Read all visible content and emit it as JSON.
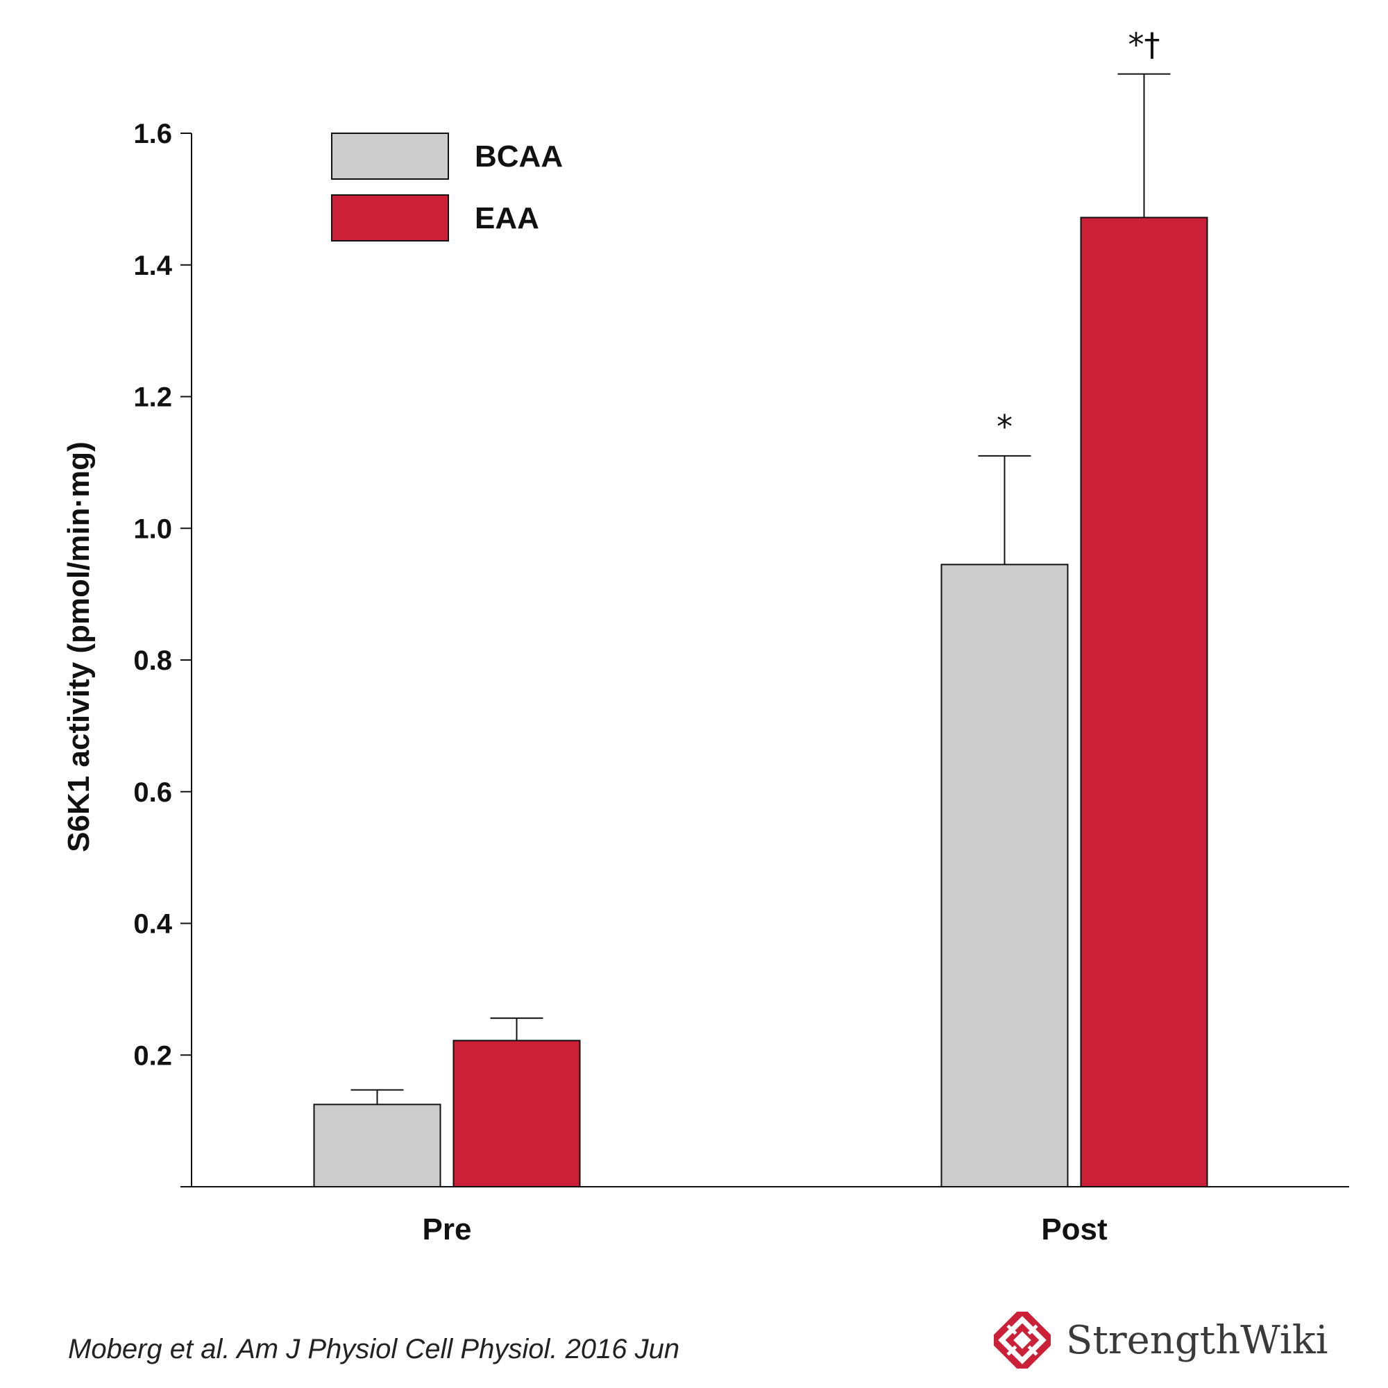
{
  "chart_data": {
    "type": "bar",
    "title": "",
    "xlabel": "",
    "ylabel": "S6K1 activity (pmol/min·mg)",
    "ylim": [
      0,
      1.6
    ],
    "yticks": [
      0.2,
      0.4,
      0.6,
      0.8,
      1.0,
      1.2,
      1.4,
      1.6
    ],
    "ytick_labels": [
      "0.2",
      "0.4",
      "0.6",
      "0.8",
      "1.0",
      "1.2",
      "1.4",
      "1.6"
    ],
    "categories": [
      "Pre",
      "Post"
    ],
    "series": [
      {
        "name": "BCAA",
        "color": "#cccccc",
        "values": [
          0.125,
          0.945
        ],
        "errors": [
          0.022,
          0.165
        ],
        "annotations": [
          "",
          "*"
        ]
      },
      {
        "name": "EAA",
        "color": "#cc1f38",
        "values": [
          0.222,
          1.472
        ],
        "errors": [
          0.034,
          0.218
        ],
        "annotations": [
          "",
          "*†"
        ]
      }
    ],
    "legend_position": "top-left",
    "grid": false
  },
  "footer": {
    "citation": "Moberg et al. Am J Physiol Cell Physiol. 2016 Jun",
    "brand_name": "StrengthWiki",
    "brand_color": "#cc1f38"
  }
}
